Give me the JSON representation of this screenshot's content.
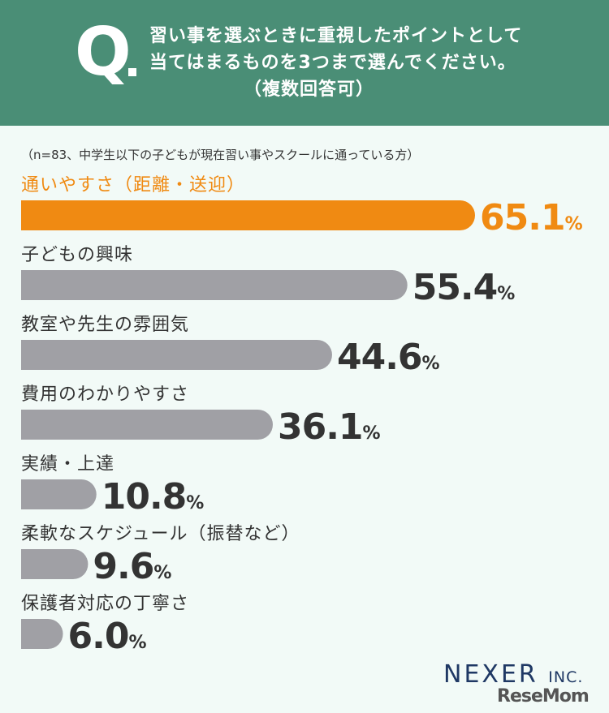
{
  "header": {
    "q_mark": "Q",
    "question_line1": "習い事を選ぶときに重視したポイントとして",
    "question_line2": "当てはまるものを3つまで選んでください。",
    "question_line3": "（複数回答可）"
  },
  "note": "（n=83、中学生以下の子どもが現在習い事やスクールに通っている方）",
  "chart_data": {
    "type": "bar",
    "orientation": "horizontal",
    "categories": [
      "通いやすさ（距離・送迎）",
      "子どもの興味",
      "教室や先生の雰囲気",
      "費用のわかりやすさ",
      "実績・上達",
      "柔軟なスケジュール（振替など）",
      "保護者対応の丁寧さ"
    ],
    "values": [
      65.1,
      55.4,
      44.6,
      36.1,
      10.8,
      9.6,
      6.0
    ],
    "value_labels": [
      "65.1",
      "55.4",
      "44.6",
      "36.1",
      "10.8",
      "9.6",
      "6.0"
    ],
    "unit": "%",
    "highlight_index": 0,
    "colors": {
      "highlight": "#f08a12",
      "default": "#a0a0a5",
      "label_default": "#333333"
    },
    "grid": false
  },
  "logos": {
    "nexer": "NEXER",
    "nexer_suffix": "INC.",
    "resemom": "ReseMom"
  }
}
